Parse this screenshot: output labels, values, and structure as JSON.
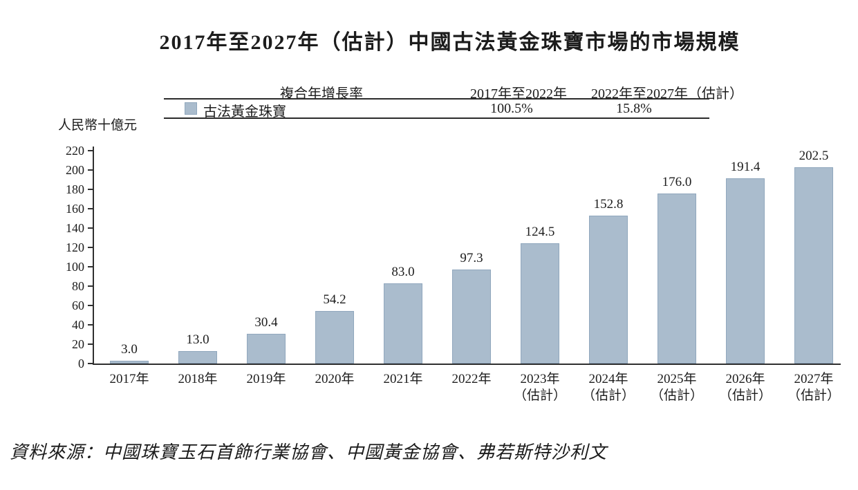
{
  "title": "2017年至2027年（估計）中國古法黃金珠寶市場的市場規模",
  "cagr_table": {
    "col_metric": "複合年增長率",
    "col_period1": "2017年至2022年",
    "col_period2": "2022年至2027年（估計）",
    "row_label": "古法黃金珠寶",
    "period1_value": "100.5%",
    "period2_value": "15.8%"
  },
  "source_note": "資料來源：中國珠寶玉石首飾行業協會、中國黃金協會、弗若斯特沙利文",
  "chart_data": {
    "type": "bar",
    "title": "2017年至2027年（估計）中國古法黃金珠寶市場的市場規模",
    "unit_label": "人民幣十億元",
    "series_name": "古法黃金珠寶",
    "categories": [
      "2017年",
      "2018年",
      "2019年",
      "2020年",
      "2021年",
      "2022年",
      "2023年（估計）",
      "2024年（估計）",
      "2025年（估計）",
      "2026年（估計）",
      "2027年（估計）"
    ],
    "values": [
      3.0,
      13.0,
      30.4,
      54.2,
      83.0,
      97.3,
      124.5,
      152.8,
      176.0,
      191.4,
      202.5
    ],
    "ylabel": "人民幣十億元",
    "xlabel": "",
    "ylim": [
      0,
      220
    ],
    "ytick_step": 20,
    "grid": false,
    "legend_position": "top-table",
    "bar_fill": "#aabccd",
    "bar_border": "#90a7bd",
    "cagr_2017_2022": "100.5%",
    "cagr_2022_2027": "15.8%"
  }
}
